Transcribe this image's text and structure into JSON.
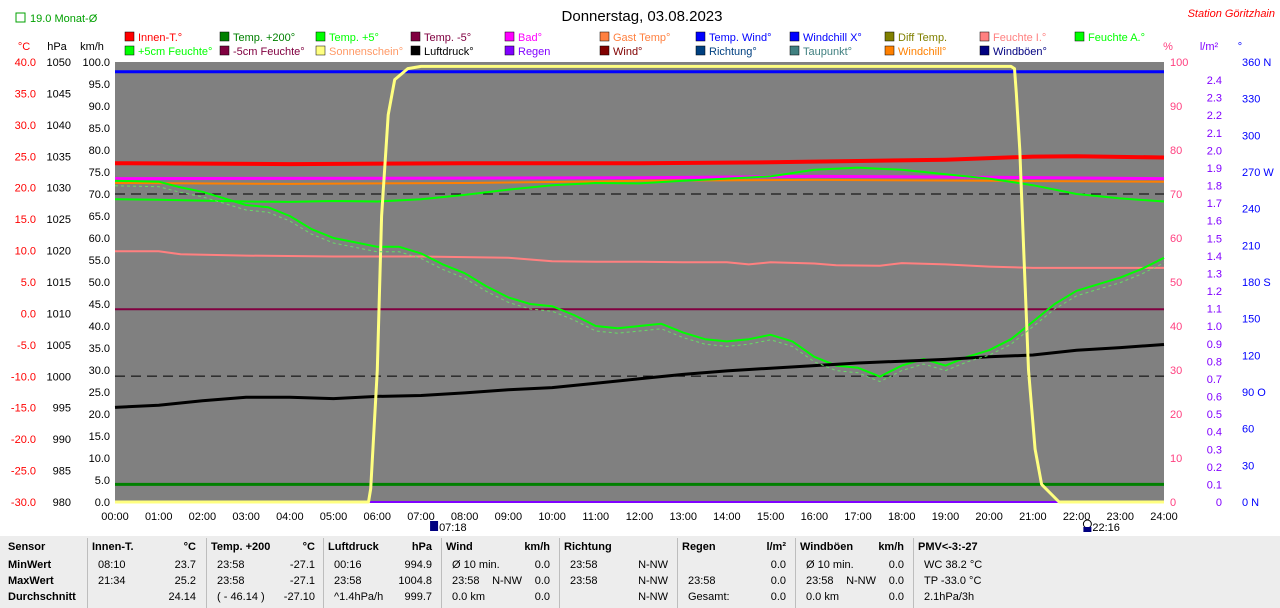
{
  "header": {
    "title": "Donnerstag, 03.08.2023",
    "station": "Station Göritzhain",
    "month_avg": "19.0 Monat-Ø"
  },
  "legend": {
    "row1": [
      {
        "label": "Innen-T.°",
        "color": "#ff0000"
      },
      {
        "label": "Temp. +200°",
        "color": "#008000"
      },
      {
        "label": "Temp. +5°",
        "color": "#00ff00"
      },
      {
        "label": "Temp. -5°",
        "color": "#800040"
      },
      {
        "label": "Bad°",
        "color": "#ff00ff"
      },
      {
        "label": "Gast Temp°",
        "color": "#ff8040"
      },
      {
        "label": "Temp. Wind°",
        "color": "#0000ff"
      },
      {
        "label": "Windchill X°",
        "color": "#0000ff"
      },
      {
        "label": "Diff Temp.",
        "color": "#808000"
      },
      {
        "label": "Feuchte I.°",
        "color": "#ff8080"
      },
      {
        "label": "Feuchte A.°",
        "color": "#00ff00"
      }
    ],
    "row2": [
      {
        "label": "+5cm Feuchte°",
        "color": "#00ff00"
      },
      {
        "label": "-5cm Feuchte°",
        "color": "#800040"
      },
      {
        "label": "Sonnenschein°",
        "color": "#ffff80"
      },
      {
        "label": "Luftdruck°",
        "color": "#000000"
      },
      {
        "label": "Regen",
        "color": "#8000ff"
      },
      {
        "label": "Wind°",
        "color": "#800000"
      },
      {
        "label": "Richtung°",
        "color": "#004080"
      },
      {
        "label": "Taupunkt°",
        "color": "#408080"
      },
      {
        "label": "Windchill°",
        "color": "#ff8000"
      },
      {
        "label": "Windböen°",
        "color": "#000080"
      }
    ]
  },
  "axes": {
    "left_units": [
      "°C",
      "hPa",
      "km/h"
    ],
    "right_units": [
      "%",
      "l/m²",
      "°"
    ],
    "temp_ticks": [
      "40.0",
      "35.0",
      "30.0",
      "25.0",
      "20.0",
      "15.0",
      "10.0",
      "5.0",
      "0.0",
      "-5.0",
      "-10.0",
      "-15.0",
      "-20.0",
      "-25.0",
      "-30.0"
    ],
    "hpa_ticks": [
      "1050",
      "1045",
      "1040",
      "1035",
      "1030",
      "1025",
      "1020",
      "1015",
      "1010",
      "1005",
      "1000",
      "995",
      "990",
      "985",
      "980"
    ],
    "kmh_ticks": [
      "100.0",
      "95.0",
      "90.0",
      "85.0",
      "80.0",
      "75.0",
      "70.0",
      "65.0",
      "60.0",
      "55.0",
      "50.0",
      "45.0",
      "40.0",
      "35.0",
      "30.0",
      "25.0",
      "20.0",
      "15.0",
      "10.0",
      "5.0",
      "0.0"
    ],
    "pct_ticks": [
      "100",
      "90",
      "80",
      "70",
      "60",
      "50",
      "40",
      "30",
      "20",
      "10",
      "0"
    ],
    "rain_ticks": [
      "2.4",
      "2.3",
      "2.2",
      "2.1",
      "2.0",
      "1.9",
      "1.8",
      "1.7",
      "1.6",
      "1.5",
      "1.4",
      "1.3",
      "1.2",
      "1.1",
      "1.0",
      "0.9",
      "0.8",
      "0.7",
      "0.6",
      "0.5",
      "0.4",
      "0.3",
      "0.2",
      "0.1",
      "0"
    ],
    "dir_ticks": [
      "360 N",
      "330",
      "300",
      "270 W",
      "240",
      "210",
      "180 S",
      "150",
      "120",
      "90 O",
      "60",
      "30",
      "0  N"
    ],
    "time_ticks": [
      "00:00",
      "01:00",
      "02:00",
      "03:00",
      "04:00",
      "05:00",
      "06:00",
      "07:00",
      "08:00",
      "09:00",
      "10:00",
      "11:00",
      "12:00",
      "13:00",
      "14:00",
      "15:00",
      "16:00",
      "17:00",
      "18:00",
      "19:00",
      "20:00",
      "21:00",
      "22:00",
      "23:00",
      "24:00"
    ],
    "sunrise": "07:18",
    "sunset": "22:16"
  },
  "chart_data": {
    "type": "line",
    "x_unit": "hour",
    "temp_range": [
      -30,
      40
    ],
    "kmh_range": [
      0,
      100
    ],
    "pct_range": [
      0,
      100
    ],
    "series": [
      {
        "name": "Innen-T.°",
        "color": "#ff0000",
        "width": 4,
        "axis": "kmh",
        "x": [
          0,
          4,
          8,
          12,
          15,
          17,
          19,
          21,
          22,
          24
        ],
        "y": [
          77,
          76.8,
          77,
          77,
          77.2,
          77.5,
          77.8,
          78.5,
          78.6,
          78.3
        ]
      },
      {
        "name": "Bad°",
        "color": "#ff00ff",
        "width": 3,
        "axis": "kmh",
        "x": [
          0,
          6,
          12,
          16,
          20,
          24
        ],
        "y": [
          73.5,
          73.6,
          73.7,
          74,
          73.8,
          73.5
        ]
      },
      {
        "name": "Windchill°",
        "color": "#ff8000",
        "width": 2,
        "axis": "kmh",
        "x": [
          0,
          4,
          8,
          12,
          16,
          20,
          24
        ],
        "y": [
          72.5,
          72.3,
          72.5,
          73,
          73.2,
          73,
          72.8
        ]
      },
      {
        "name": "Temp. Wind°",
        "color": "#0000ff",
        "width": 3,
        "axis": "kmh",
        "x": [
          0,
          24
        ],
        "y": [
          97.8,
          97.8
        ]
      },
      {
        "name": "Temp. +200°",
        "color": "#008000",
        "width": 3,
        "axis": "kmh",
        "x": [
          0,
          24
        ],
        "y": [
          4,
          4
        ]
      },
      {
        "name": "Temp. -5°",
        "color": "#800040",
        "width": 2,
        "axis": "kmh",
        "x": [
          0,
          24
        ],
        "y": [
          43.8,
          43.8
        ]
      },
      {
        "name": "Regen",
        "color": "#8000ff",
        "width": 2,
        "axis": "kmh",
        "x": [
          0,
          24
        ],
        "y": [
          0,
          0
        ]
      },
      {
        "name": "Feuchte I.°",
        "color": "#ff8080",
        "width": 2,
        "axis": "kmh",
        "x": [
          0,
          1,
          1.5,
          3,
          5,
          7,
          9,
          10,
          11,
          12,
          13,
          14,
          14.5,
          15,
          16,
          16.5,
          17.5,
          18,
          19,
          20,
          21,
          24
        ],
        "y": [
          57,
          57,
          56.3,
          56,
          55.8,
          55.8,
          55.5,
          54.7,
          54.6,
          54.6,
          54.5,
          54.5,
          54,
          54.5,
          54.2,
          53.8,
          53.7,
          54.3,
          54,
          53.5,
          53.2,
          53.2
        ]
      },
      {
        "name": "Feuchte A.°",
        "color": "#00ff00",
        "width": 2,
        "axis": "kmh",
        "x": [
          0,
          1,
          2,
          3,
          4,
          5,
          6,
          7,
          8,
          9,
          10,
          11,
          12,
          13,
          14,
          15,
          16,
          17,
          18,
          19,
          20,
          21,
          22,
          23,
          24
        ],
        "y": [
          68.8,
          68.7,
          68.5,
          68.3,
          68.2,
          68.4,
          68.3,
          68.8,
          69.8,
          71,
          72,
          72.5,
          72.4,
          73,
          73.5,
          74,
          75.5,
          76,
          75.5,
          74.5,
          73.5,
          72,
          70,
          69,
          68.3
        ]
      },
      {
        "name": "+5cm Feuchte°",
        "color": "#00ff00",
        "width": 2,
        "axis": "kmh",
        "x": [
          0,
          1,
          1.5,
          2,
          3,
          3.5,
          4,
          4.5,
          5,
          5.5,
          6,
          6.5,
          7,
          7.5,
          8,
          8.5,
          9,
          9.5,
          10,
          10.5,
          11,
          11.5,
          12,
          12.5,
          13,
          13.5,
          14,
          14.5,
          15,
          15.5,
          16,
          16.5,
          17,
          17.5,
          18,
          18.5,
          19,
          19.5,
          20,
          20.5,
          21,
          21.5,
          22,
          22.5,
          23,
          23.5,
          24
        ],
        "y": [
          73,
          72.8,
          71.5,
          70.5,
          67.5,
          67,
          65,
          62,
          60,
          59,
          58,
          58,
          56.5,
          54,
          52,
          49,
          46.5,
          45,
          44.5,
          42.5,
          40,
          39.5,
          40,
          40.5,
          38.5,
          37,
          36.5,
          37,
          38,
          36.5,
          33,
          31,
          30.5,
          28.5,
          31,
          32.5,
          31,
          33,
          34.5,
          37,
          41,
          45,
          48,
          49.5,
          51,
          53,
          55.5
        ]
      },
      {
        "name": "Luftdruck°",
        "color": "#000000",
        "width": 3,
        "axis": "kmh",
        "x": [
          0,
          1,
          2,
          3,
          4,
          5,
          6,
          7,
          8,
          9,
          10,
          11,
          12,
          13,
          14,
          15,
          16,
          17,
          18,
          19,
          20,
          21,
          22,
          23,
          24
        ],
        "y": [
          21.5,
          22,
          23,
          23.8,
          23.8,
          23.5,
          24,
          24.2,
          24.8,
          25.5,
          26,
          27,
          28,
          29,
          29.8,
          30.4,
          31,
          31.6,
          32,
          32.4,
          33,
          33.4,
          34.5,
          35.1,
          35.8
        ]
      },
      {
        "name": "Sonnenschein°",
        "color": "#ffff80",
        "width": 3,
        "axis": "kmh",
        "x": [
          0,
          5.8,
          5.85,
          6.0,
          6.1,
          6.25,
          6.4,
          6.7,
          7,
          8,
          20,
          20.5,
          20.58,
          20.62,
          20.7,
          20.8,
          20.9,
          21.05,
          21.2,
          21.6,
          24
        ],
        "y": [
          0,
          0,
          3,
          30,
          65,
          88,
          96,
          98.5,
          99,
          99,
          99,
          99,
          98.5,
          93,
          80,
          55,
          30,
          12,
          4,
          0,
          0
        ]
      }
    ],
    "dashed_lines": [
      {
        "color": "#000000",
        "axis": "kmh",
        "y": 70
      },
      {
        "color": "#000000",
        "axis": "kmh",
        "y": 28.6
      }
    ]
  },
  "table": {
    "row_labels": [
      "Sensor",
      "MinWert",
      "MaxWert",
      "Durchschnitt"
    ],
    "sections": [
      {
        "title": "Innen-T.",
        "unit": "°C",
        "rows": [
          [
            "08:10",
            "",
            "23.7"
          ],
          [
            "21:34",
            "",
            "25.2"
          ],
          [
            "",
            "",
            "24.14"
          ]
        ]
      },
      {
        "title": "Temp. +200",
        "unit": "°C",
        "rows": [
          [
            "23:58",
            "",
            "-27.1"
          ],
          [
            "23:58",
            "",
            "-27.1"
          ],
          [
            "( - 46.14 )",
            "",
            "-27.10"
          ]
        ]
      },
      {
        "title": "Luftdruck",
        "unit": "hPa",
        "rows": [
          [
            "00:16",
            "",
            "994.9"
          ],
          [
            "23:58",
            "",
            "1004.8"
          ],
          [
            "^1.4hPa/h",
            "",
            "999.7"
          ]
        ]
      },
      {
        "title": "Wind",
        "unit": "km/h",
        "rows": [
          [
            "Ø 10 min.",
            "",
            "0.0"
          ],
          [
            "23:58",
            "N-NW",
            "0.0"
          ],
          [
            "0.0 km",
            "",
            "0.0"
          ]
        ]
      },
      {
        "title": "Richtung",
        "unit": "",
        "rows": [
          [
            "23:58",
            "",
            "N-NW"
          ],
          [
            "23:58",
            "",
            "N-NW"
          ],
          [
            "",
            "",
            "N-NW"
          ]
        ]
      },
      {
        "title": "Regen",
        "unit": "l/m²",
        "rows": [
          [
            "",
            "",
            "0.0"
          ],
          [
            "23:58",
            "",
            "0.0"
          ],
          [
            "Gesamt:",
            "",
            "0.0"
          ]
        ]
      },
      {
        "title": "Windböen",
        "unit": "km/h",
        "rows": [
          [
            "Ø 10 min.",
            "",
            "0.0"
          ],
          [
            "23:58",
            "N-NW",
            "0.0"
          ],
          [
            "0.0 km",
            "",
            "0.0"
          ]
        ]
      },
      {
        "title": "PMV<-3:-27",
        "unit": "",
        "rows": [
          [
            "WC 38.2 °C",
            "",
            ""
          ],
          [
            "TP -33.0 °C",
            "",
            ""
          ],
          [
            "2.1hPa/3h",
            "",
            ""
          ]
        ]
      }
    ]
  }
}
